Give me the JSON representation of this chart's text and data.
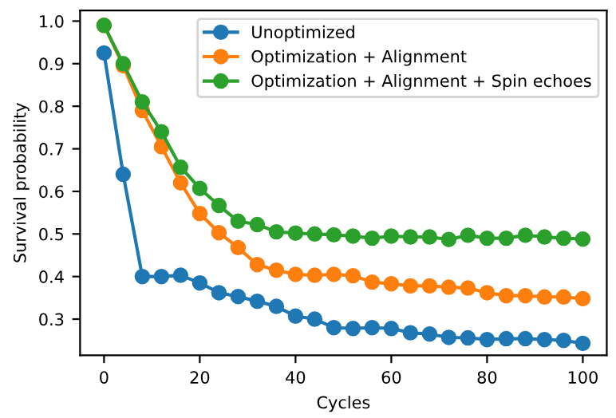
{
  "chart_data": {
    "type": "line",
    "xlabel": "Cycles",
    "ylabel": "Survival probability",
    "x": [
      0,
      4,
      8,
      12,
      16,
      20,
      24,
      28,
      32,
      36,
      40,
      44,
      48,
      52,
      56,
      60,
      64,
      68,
      72,
      76,
      80,
      84,
      88,
      92,
      96,
      100
    ],
    "series": [
      {
        "name": "Unoptimized",
        "color": "#1f77b4",
        "values": [
          0.925,
          0.64,
          0.4,
          0.4,
          0.403,
          0.385,
          0.362,
          0.353,
          0.342,
          0.33,
          0.307,
          0.3,
          0.28,
          0.278,
          0.28,
          0.278,
          0.268,
          0.265,
          0.257,
          0.256,
          0.252,
          0.254,
          0.254,
          0.252,
          0.25,
          0.243
        ]
      },
      {
        "name": "Optimization + Alignment",
        "color": "#ff7f0e",
        "values": [
          0.99,
          0.895,
          0.79,
          0.705,
          0.62,
          0.548,
          0.503,
          0.468,
          0.428,
          0.415,
          0.405,
          0.403,
          0.405,
          0.402,
          0.387,
          0.383,
          0.378,
          0.378,
          0.375,
          0.373,
          0.362,
          0.355,
          0.355,
          0.352,
          0.352,
          0.348
        ]
      },
      {
        "name": "Optimization + Alignment + Spin echoes",
        "color": "#2ca02c",
        "values": [
          0.99,
          0.9,
          0.81,
          0.74,
          0.657,
          0.607,
          0.567,
          0.53,
          0.522,
          0.505,
          0.502,
          0.5,
          0.498,
          0.495,
          0.49,
          0.495,
          0.493,
          0.493,
          0.487,
          0.497,
          0.49,
          0.49,
          0.497,
          0.493,
          0.49,
          0.488
        ]
      }
    ],
    "xlim": [
      -5,
      105
    ],
    "ylim": [
      0.215,
      1.025
    ],
    "xticks": [
      0,
      20,
      40,
      60,
      80,
      100
    ],
    "yticks": [
      {
        "value": 0.3,
        "label": "0.3"
      },
      {
        "value": 0.4,
        "label": "0.4"
      },
      {
        "value": 0.5,
        "label": "0.5"
      },
      {
        "value": 0.6,
        "label": "0.6"
      },
      {
        "value": 0.7,
        "label": "0.7"
      },
      {
        "value": 0.8,
        "label": "0.8"
      },
      {
        "value": 0.9,
        "label": "0.9"
      },
      {
        "value": 1.0,
        "label": "1.0"
      }
    ],
    "marker": "circle",
    "line_style": "solid",
    "legend": "top right",
    "grid": false
  }
}
